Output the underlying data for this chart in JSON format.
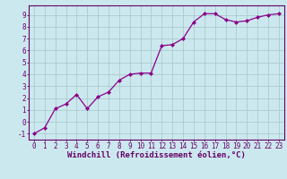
{
  "x": [
    0,
    1,
    2,
    3,
    4,
    5,
    6,
    7,
    8,
    9,
    10,
    11,
    12,
    13,
    14,
    15,
    16,
    17,
    18,
    19,
    20,
    21,
    22,
    23
  ],
  "y": [
    -1,
    -0.5,
    1.1,
    1.5,
    2.3,
    1.1,
    2.1,
    2.5,
    3.5,
    4.0,
    4.1,
    4.1,
    6.4,
    6.5,
    7.0,
    8.4,
    9.1,
    9.1,
    8.6,
    8.4,
    8.5,
    8.8,
    9.0,
    9.1
  ],
  "line_color": "#8b008b",
  "marker": "D",
  "marker_size": 2.0,
  "bg_color": "#cce8ef",
  "grid_color": "#aacccc",
  "xlabel": "Windchill (Refroidissement éolien,°C)",
  "xlim": [
    -0.5,
    23.5
  ],
  "ylim": [
    -1.5,
    9.8
  ],
  "xticks": [
    0,
    1,
    2,
    3,
    4,
    5,
    6,
    7,
    8,
    9,
    10,
    11,
    12,
    13,
    14,
    15,
    16,
    17,
    18,
    19,
    20,
    21,
    22,
    23
  ],
  "yticks": [
    -1,
    0,
    1,
    2,
    3,
    4,
    5,
    6,
    7,
    8,
    9
  ],
  "tick_color": "#660066",
  "tick_fontsize": 5.5,
  "xlabel_fontsize": 6.5,
  "spine_color": "#660066"
}
